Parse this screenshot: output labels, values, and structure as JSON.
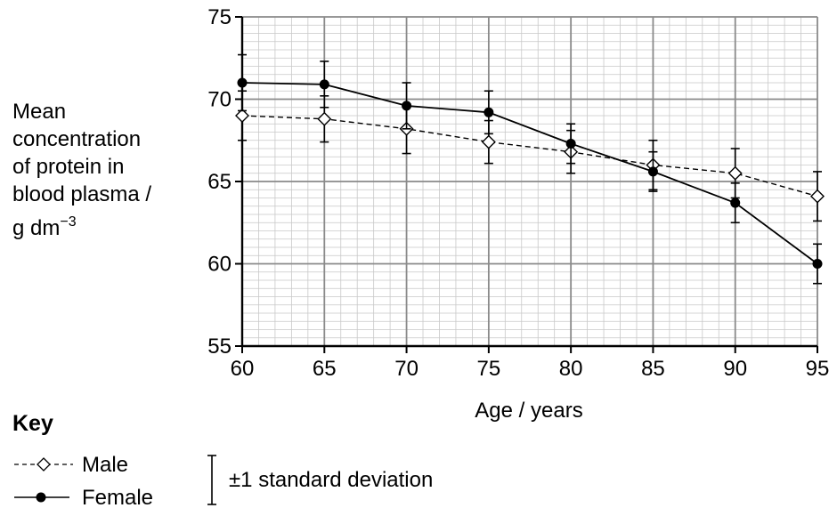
{
  "chart_data": {
    "type": "line",
    "title": "",
    "xlabel": "Age / years",
    "ylabel_lines": [
      "Mean",
      "concentration",
      "of protein in",
      "blood plasma /",
      "g dm",
      "−3"
    ],
    "x": [
      60,
      65,
      70,
      75,
      80,
      85,
      90,
      95
    ],
    "xlim": [
      60,
      95
    ],
    "ylim": [
      55,
      75
    ],
    "x_ticks": [
      "60",
      "65",
      "70",
      "75",
      "80",
      "85",
      "90",
      "95"
    ],
    "y_ticks": [
      "55",
      "60",
      "65",
      "70",
      "75"
    ],
    "grid": true,
    "legend_position": "bottom-left",
    "series": [
      {
        "name": "Male",
        "marker": "open-diamond",
        "line_style": "dashed",
        "values": [
          69.0,
          68.8,
          68.2,
          67.4,
          66.8,
          66.0,
          65.5,
          64.1
        ],
        "sd": [
          1.5,
          1.4,
          1.5,
          1.3,
          1.3,
          1.5,
          1.5,
          1.5
        ]
      },
      {
        "name": "Female",
        "marker": "filled-circle",
        "line_style": "solid",
        "values": [
          71.0,
          70.9,
          69.6,
          69.2,
          67.3,
          65.6,
          63.7,
          60.0
        ],
        "sd": [
          1.7,
          1.4,
          1.4,
          1.3,
          1.2,
          1.2,
          1.2,
          1.2
        ]
      }
    ]
  },
  "key": {
    "title": "Key",
    "male_label": "Male",
    "female_label": "Female",
    "sd_label": "±1 standard deviation"
  }
}
